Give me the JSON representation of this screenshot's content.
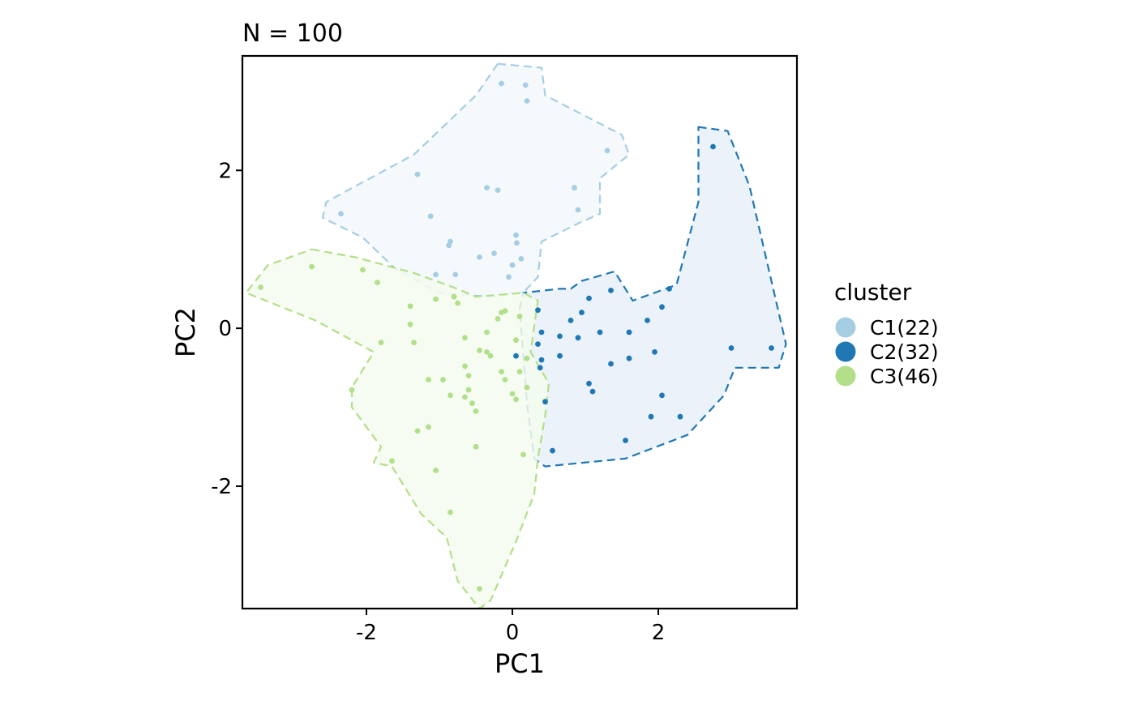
{
  "chart_data": {
    "type": "scatter",
    "title": "N = 100",
    "xlabel": "PC1",
    "ylabel": "PC2",
    "xlim": [
      -3.7,
      3.9
    ],
    "ylim": [
      -3.55,
      3.45
    ],
    "x_ticks": [
      -2,
      0,
      2
    ],
    "y_ticks": [
      -2,
      0,
      2
    ],
    "x_tick_labels": [
      "-2",
      "0",
      "2"
    ],
    "y_tick_labels": [
      "-2",
      "0",
      "2"
    ],
    "grid": false,
    "legend": {
      "title": "cluster",
      "position": "right",
      "entries": [
        "C1(22)",
        "C2(32)",
        "C3(46)"
      ]
    },
    "series": [
      {
        "name": "C1(22)",
        "color": "#a6cee3",
        "fill": "#f3f8fc",
        "hull": [
          [
            -0.2,
            3.35
          ],
          [
            0.4,
            3.3
          ],
          [
            0.45,
            2.95
          ],
          [
            1.5,
            2.45
          ],
          [
            1.6,
            2.2
          ],
          [
            1.2,
            1.9
          ],
          [
            1.2,
            1.45
          ],
          [
            0.95,
            1.35
          ],
          [
            0.4,
            1.1
          ],
          [
            0.35,
            0.65
          ],
          [
            0.15,
            0.45
          ],
          [
            -0.3,
            0.4
          ],
          [
            -1.0,
            0.45
          ],
          [
            -1.6,
            0.75
          ],
          [
            -2.05,
            1.15
          ],
          [
            -2.6,
            1.4
          ],
          [
            -2.55,
            1.6
          ],
          [
            -1.35,
            2.2
          ],
          [
            -0.5,
            2.95
          ]
        ],
        "points": [
          [
            -0.15,
            3.1
          ],
          [
            0.18,
            3.08
          ],
          [
            0.2,
            2.88
          ],
          [
            1.3,
            2.25
          ],
          [
            -1.3,
            1.95
          ],
          [
            -0.35,
            1.78
          ],
          [
            -0.2,
            1.75
          ],
          [
            0.85,
            1.78
          ],
          [
            0.9,
            1.5
          ],
          [
            -2.35,
            1.45
          ],
          [
            -1.12,
            1.42
          ],
          [
            -0.85,
            1.1
          ],
          [
            -0.87,
            1.05
          ],
          [
            0.05,
            1.18
          ],
          [
            0.06,
            1.08
          ],
          [
            -0.25,
            0.95
          ],
          [
            -0.45,
            0.9
          ],
          [
            0.12,
            0.88
          ],
          [
            0.0,
            0.8
          ],
          [
            -1.05,
            0.68
          ],
          [
            -0.78,
            0.68
          ],
          [
            -0.05,
            0.65
          ]
        ]
      },
      {
        "name": "C2(32)",
        "color": "#1f78b4",
        "fill": "#e7f0f8",
        "hull": [
          [
            2.55,
            2.55
          ],
          [
            2.95,
            2.5
          ],
          [
            3.25,
            1.8
          ],
          [
            3.75,
            -0.2
          ],
          [
            3.65,
            -0.5
          ],
          [
            3.05,
            -0.5
          ],
          [
            2.9,
            -0.85
          ],
          [
            2.4,
            -1.35
          ],
          [
            1.55,
            -1.65
          ],
          [
            0.45,
            -1.75
          ],
          [
            0.3,
            -1.65
          ],
          [
            0.2,
            -0.95
          ],
          [
            0.1,
            0.25
          ],
          [
            0.15,
            0.45
          ],
          [
            0.65,
            0.5
          ],
          [
            0.8,
            0.5
          ],
          [
            0.95,
            0.6
          ],
          [
            1.4,
            0.72
          ],
          [
            1.65,
            0.35
          ],
          [
            2.25,
            0.55
          ],
          [
            2.55,
            1.6
          ]
        ],
        "points": [
          [
            2.75,
            2.3
          ],
          [
            1.35,
            0.48
          ],
          [
            2.15,
            0.5
          ],
          [
            1.05,
            0.38
          ],
          [
            2.05,
            0.27
          ],
          [
            0.35,
            0.23
          ],
          [
            0.95,
            0.2
          ],
          [
            0.8,
            0.1
          ],
          [
            1.85,
            0.1
          ],
          [
            0.4,
            -0.05
          ],
          [
            0.65,
            -0.1
          ],
          [
            1.2,
            -0.05
          ],
          [
            1.6,
            -0.05
          ],
          [
            0.9,
            -0.12
          ],
          [
            0.35,
            -0.2
          ],
          [
            3.0,
            -0.25
          ],
          [
            3.55,
            -0.25
          ],
          [
            0.4,
            -0.4
          ],
          [
            0.65,
            -0.35
          ],
          [
            1.6,
            -0.38
          ],
          [
            1.95,
            -0.3
          ],
          [
            1.35,
            -0.45
          ],
          [
            0.38,
            -0.5
          ],
          [
            1.05,
            -0.7
          ],
          [
            1.1,
            -0.8
          ],
          [
            2.05,
            -0.85
          ],
          [
            0.45,
            -0.93
          ],
          [
            1.9,
            -1.12
          ],
          [
            2.3,
            -1.12
          ],
          [
            1.55,
            -1.42
          ],
          [
            0.55,
            -1.55
          ],
          [
            0.05,
            -0.35
          ]
        ]
      },
      {
        "name": "C3(46)",
        "color": "#b2df8a",
        "fill": "#f4fbef",
        "hull": [
          [
            -2.75,
            1.0
          ],
          [
            -2.15,
            0.9
          ],
          [
            -1.35,
            0.7
          ],
          [
            -0.75,
            0.5
          ],
          [
            -0.5,
            0.4
          ],
          [
            0.15,
            0.45
          ],
          [
            0.35,
            0.35
          ],
          [
            0.25,
            -0.3
          ],
          [
            0.5,
            -0.7
          ],
          [
            0.45,
            -1.1
          ],
          [
            0.35,
            -1.65
          ],
          [
            0.3,
            -2.1
          ],
          [
            0.05,
            -2.7
          ],
          [
            -0.3,
            -3.45
          ],
          [
            -0.45,
            -3.55
          ],
          [
            -0.75,
            -3.2
          ],
          [
            -0.9,
            -2.65
          ],
          [
            -1.25,
            -2.35
          ],
          [
            -1.65,
            -1.75
          ],
          [
            -1.9,
            -1.7
          ],
          [
            -1.8,
            -1.5
          ],
          [
            -2.2,
            -1.0
          ],
          [
            -2.2,
            -0.75
          ],
          [
            -1.9,
            -0.3
          ],
          [
            -2.7,
            0.1
          ],
          [
            -3.65,
            0.45
          ],
          [
            -3.35,
            0.8
          ]
        ],
        "points": [
          [
            -2.75,
            0.78
          ],
          [
            -3.45,
            0.52
          ],
          [
            -2.05,
            0.74
          ],
          [
            -1.85,
            0.58
          ],
          [
            -1.05,
            0.37
          ],
          [
            -0.8,
            0.4
          ],
          [
            -0.75,
            0.32
          ],
          [
            -1.4,
            0.28
          ],
          [
            -0.15,
            0.2
          ],
          [
            -0.1,
            0.22
          ],
          [
            0.1,
            0.15
          ],
          [
            -0.2,
            0.12
          ],
          [
            -1.4,
            0.05
          ],
          [
            -0.35,
            -0.05
          ],
          [
            -0.65,
            -0.12
          ],
          [
            -1.8,
            -0.18
          ],
          [
            -1.35,
            -0.18
          ],
          [
            -0.45,
            -0.28
          ],
          [
            -0.35,
            -0.3
          ],
          [
            0.2,
            -0.38
          ],
          [
            -0.65,
            -0.48
          ],
          [
            -0.15,
            -0.55
          ],
          [
            -0.1,
            -0.65
          ],
          [
            -1.15,
            -0.65
          ],
          [
            -0.95,
            -0.65
          ],
          [
            -0.6,
            -0.6
          ],
          [
            -0.6,
            -0.78
          ],
          [
            0.0,
            -0.83
          ],
          [
            0.2,
            -0.75
          ],
          [
            -2.2,
            -0.78
          ],
          [
            -0.85,
            -0.85
          ],
          [
            -0.65,
            -0.87
          ],
          [
            0.05,
            -0.9
          ],
          [
            -0.5,
            -1.05
          ],
          [
            -1.15,
            -1.25
          ],
          [
            -1.3,
            -1.3
          ],
          [
            -0.5,
            -1.5
          ],
          [
            0.15,
            -1.6
          ],
          [
            -1.65,
            -1.68
          ],
          [
            -1.05,
            -1.8
          ],
          [
            -0.85,
            -2.33
          ],
          [
            -0.45,
            -3.3
          ],
          [
            -0.55,
            -0.95
          ],
          [
            0.05,
            -0.15
          ],
          [
            -0.3,
            -0.35
          ],
          [
            0.1,
            -0.55
          ]
        ]
      }
    ]
  }
}
